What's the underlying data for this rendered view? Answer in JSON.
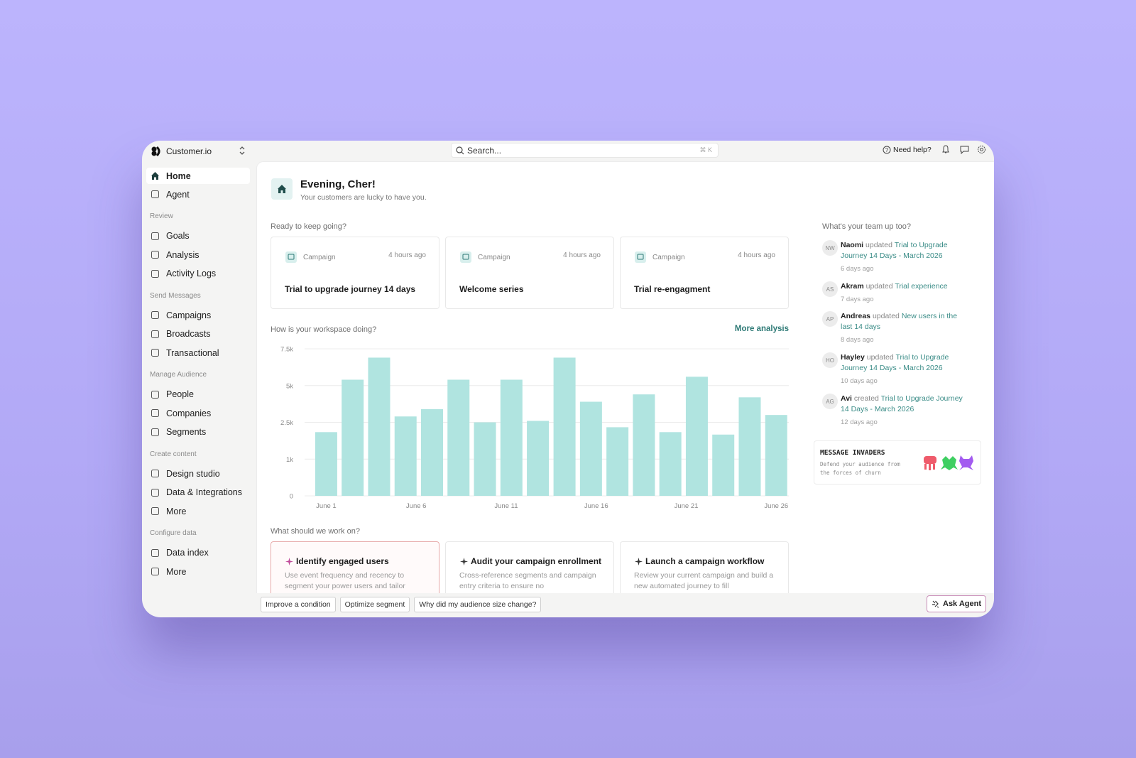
{
  "sidebar": {
    "brand": "Customer.io",
    "items": [
      "Home",
      "Agent"
    ],
    "sections": [
      {
        "title": "Review",
        "items": [
          "Goals",
          "Analysis",
          "Activity Logs"
        ]
      },
      {
        "title": "Send Messages",
        "items": [
          "Campaigns",
          "Broadcasts",
          "Transactional"
        ]
      },
      {
        "title": "Manage Audience",
        "items": [
          "People",
          "Companies",
          "Segments"
        ]
      },
      {
        "title": "Create content",
        "items": [
          "Design studio",
          "Data & Integrations",
          "More"
        ]
      },
      {
        "title": "Configure data",
        "items": [
          "Data index",
          "More"
        ]
      }
    ]
  },
  "topbar": {
    "search": "Search...",
    "shortcut": "⌘ K",
    "help": "Need help?"
  },
  "header": {
    "title": "Evening, Cher!",
    "subtitle": "Your customers are lucky to have you."
  },
  "recent": {
    "title": "Ready to keep going?",
    "cards": [
      {
        "kind": "Campaign",
        "time": "4 hours ago",
        "name": "Trial to upgrade journey 14 days"
      },
      {
        "kind": "Campaign",
        "time": "4 hours ago",
        "name": "Welcome series"
      },
      {
        "kind": "Campaign",
        "time": "4 hours ago",
        "name": "Trial re-engagment"
      }
    ]
  },
  "more_link": "More analysis",
  "chart_data": {
    "type": "bar",
    "title": "How is your workspace doing?",
    "x": [
      1,
      2.47,
      3.94,
      5.41,
      6.88,
      8.35,
      9.82,
      11.29,
      12.76,
      14.24,
      15.71,
      17.18,
      18.65,
      20.12,
      21.59,
      23.06,
      24.53,
      26
    ],
    "values": [
      2100,
      5400,
      6900,
      2900,
      3400,
      5400,
      2500,
      5400,
      2600,
      6900,
      3900,
      2300,
      4400,
      2100,
      5600,
      2000,
      4200,
      3000
    ],
    "color": "#b0e4e0",
    "xlim": [
      -0.2,
      26.7
    ],
    "xticks": [
      {
        "value": 1,
        "label": "June 1"
      },
      {
        "value": 6,
        "label": "June 6"
      },
      {
        "value": 11,
        "label": "June 11"
      },
      {
        "value": 16,
        "label": "June 16"
      },
      {
        "value": 21,
        "label": "June 21"
      },
      {
        "value": 26,
        "label": "June 26"
      }
    ],
    "ylim": [
      0,
      7500
    ],
    "yticks": [
      0,
      {
        "value": 1000,
        "label": "1k"
      },
      {
        "value": 2500,
        "label": "2.5k"
      },
      {
        "value": 5000,
        "label": "5k"
      },
      {
        "value": 7500,
        "label": "7.5k"
      }
    ],
    "grid": true
  },
  "suggestions": {
    "title": "What should we work on?",
    "cards": [
      {
        "title": "Identify engaged users",
        "text": "Use event frequency and recency to segment your power users and tailor"
      },
      {
        "title": "Audit your campaign enrollment",
        "text": "Cross-reference segments and campaign entry criteria to ensure no"
      },
      {
        "title": "Launch a campaign workflow",
        "text": "Review your current campaign and build a new automated journey to fill"
      }
    ]
  },
  "activity": {
    "title": "What's your team up too?",
    "items": [
      {
        "initials": "NW",
        "name": "Naomi",
        "action": "updated",
        "target": "Trial to Upgrade Journey 14 Days - March 2026",
        "time": "6 days ago"
      },
      {
        "initials": "AS",
        "name": "Akram",
        "action": "updated",
        "target": "Trial experience",
        "time": "7 days ago"
      },
      {
        "initials": "AP",
        "name": "Andreas",
        "action": "updated",
        "target": "New users in the last 14 days",
        "time": "8 days ago"
      },
      {
        "initials": "HO",
        "name": "Hayley",
        "action": "updated",
        "target": "Trial to Upgrade Journey 14 Days - March 2026",
        "time": "10 days ago"
      },
      {
        "initials": "AG",
        "name": "Avi",
        "action": "created",
        "target": "Trial to Upgrade Journey 14 Days - March 2026",
        "time": "12 days ago"
      }
    ]
  },
  "promo": {
    "title": "MESSAGE INVADERS",
    "text": "Defend your audience from the forces of churn"
  },
  "chips": [
    "Improve a condition",
    "Optimize segment",
    "Why did my audience size change?"
  ],
  "ask_agent": "Ask Agent"
}
